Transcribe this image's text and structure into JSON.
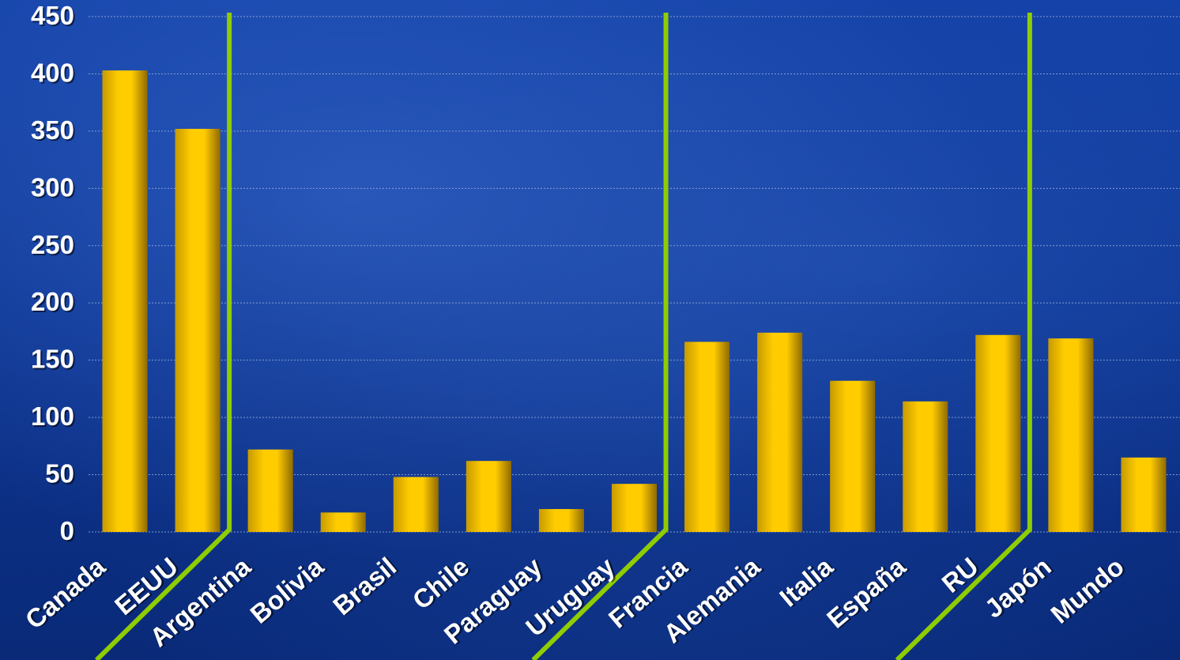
{
  "chart_data": {
    "type": "bar",
    "categories": [
      "Canada",
      "EEUU",
      "Argentina",
      "Bolivia",
      "Brasil",
      "Chile",
      "Paraguay",
      "Uruguay",
      "Francia",
      "Alemania",
      "Italia",
      "España",
      "RU",
      "Japón",
      "Mundo"
    ],
    "values": [
      403,
      352,
      72,
      17,
      48,
      62,
      20,
      42,
      166,
      174,
      132,
      114,
      172,
      169,
      65
    ],
    "ylim": [
      0,
      450
    ],
    "yticks": [
      0,
      50,
      100,
      150,
      200,
      250,
      300,
      350,
      400,
      450
    ],
    "grid": true,
    "colors": {
      "bar": "#ffcc00",
      "bar_shade": "#b88a00",
      "separator": "#8fcc00",
      "text": "#ffffff",
      "grid": "#9fb3d9"
    },
    "group_separators_after": [
      "EEUU",
      "Uruguay",
      "RU"
    ]
  }
}
